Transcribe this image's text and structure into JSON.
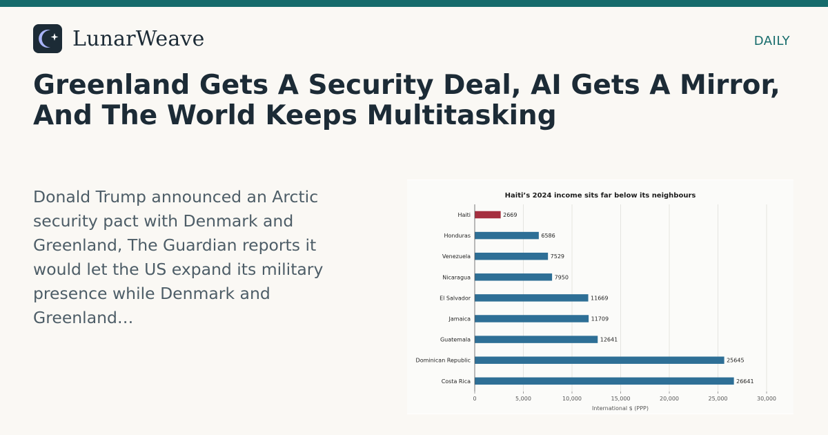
{
  "brand": {
    "name": "LunarWeave",
    "logo_icon": "moon-star-icon"
  },
  "section": {
    "label": "DAILY"
  },
  "article": {
    "headline": "Greenland Gets A Security Deal, AI Gets A Mirror, And The World Keeps Multitasking",
    "summary": "Donald Trump announced an Arctic security pact with Denmark and Greenland, The Guardian reports it would let the US expand its military presence while Denmark and Greenland…"
  },
  "colors": {
    "accent": "#156b6b",
    "bar": "#2e6f96",
    "highlight": "#a52f3f",
    "text": "#1c2b36"
  },
  "chart_data": {
    "type": "bar",
    "orientation": "horizontal",
    "title": "Haiti’s 2024 income sits far below its neighbours",
    "xlabel": "International $ (PPP)",
    "ylabel": "",
    "categories": [
      "Haiti",
      "Honduras",
      "Venezuela",
      "Nicaragua",
      "El Salvador",
      "Jamaica",
      "Guatemala",
      "Dominican Republic",
      "Costa Rica"
    ],
    "values": [
      2669,
      6586,
      7529,
      7950,
      11669,
      11709,
      12641,
      25645,
      26641
    ],
    "highlight": "Haiti",
    "xlim": [
      0,
      30000
    ],
    "xticks": [
      0,
      5000,
      10000,
      15000,
      20000,
      25000,
      30000
    ],
    "xtick_labels": [
      "0",
      "5,000",
      "10,000",
      "15,000",
      "20,000",
      "25,000",
      "30,000"
    ],
    "grid": "vertical",
    "legend": "none"
  }
}
